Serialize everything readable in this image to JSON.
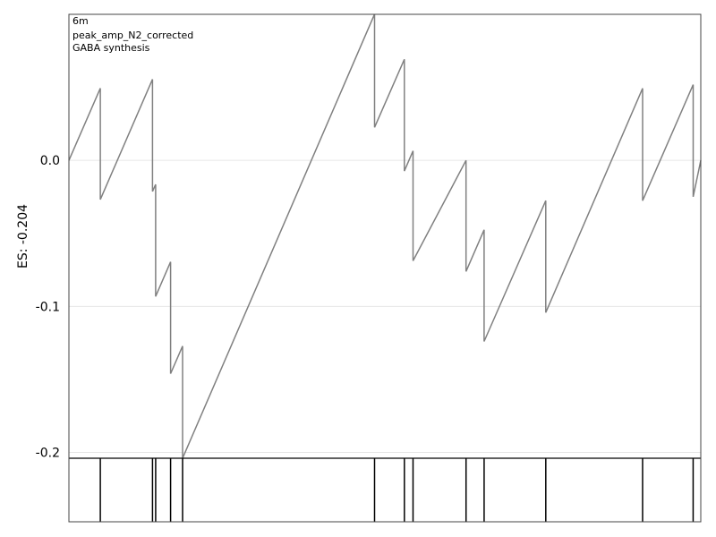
{
  "chart_data": {
    "type": "line",
    "annotations": [
      "6m",
      "peak_amp_N2_corrected",
      "GABA synthesis"
    ],
    "ylabel": "ES: -0.204",
    "xlabel": "",
    "ylim": [
      -0.204,
      0.1
    ],
    "xlim": [
      0,
      1
    ],
    "yticks": [
      0.0,
      -0.1,
      -0.2
    ],
    "ytick_labels": [
      "0.0",
      "-0.1",
      "-0.2"
    ],
    "grid": true,
    "series": [
      {
        "color": "#808080",
        "x": [
          0,
          0.0497,
          0.0497,
          0.1323,
          0.1323,
          0.1373,
          0.1373,
          0.1609,
          0.1609,
          0.1799,
          0.1799,
          0.4837,
          0.4837,
          0.5309,
          0.5309,
          0.5446,
          0.5446,
          0.6285,
          0.6285,
          0.6571,
          0.6571,
          0.7547,
          0.7547,
          0.9079,
          0.9079,
          0.9879,
          0.9879,
          1.0
        ],
        "y": [
          0.0,
          0.0494,
          -0.0268,
          0.0555,
          -0.0213,
          -0.0165,
          -0.0932,
          -0.0695,
          -0.1461,
          -0.1272,
          -0.204,
          0.1001,
          0.0226,
          0.0692,
          -0.0073,
          0.0065,
          -0.0688,
          0.0,
          -0.0761,
          -0.0476,
          -0.124,
          -0.0276,
          -0.1042,
          0.0493,
          -0.0276,
          0.0518,
          -0.025,
          0.0
        ]
      }
    ],
    "rug": {
      "color": "#000000",
      "positions": [
        0.0497,
        0.1323,
        0.1373,
        0.1609,
        0.1799,
        0.4837,
        0.5309,
        0.5446,
        0.6285,
        0.6571,
        0.7547,
        0.9079,
        0.9879
      ]
    }
  }
}
